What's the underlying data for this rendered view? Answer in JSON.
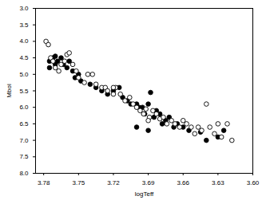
{
  "chart_data": {
    "type": "scatter",
    "x_label": "logTeff",
    "y_label": "Mbol",
    "xlim": [
      3.787,
      3.6
    ],
    "ylim": [
      8,
      3
    ],
    "xticks": [
      3.78,
      3.75,
      3.72,
      3.69,
      3.66,
      3.63,
      {
        "value": 3.6,
        "label": "3.60"
      }
    ],
    "yticks": [
      {
        "value": 3,
        "label": "3.0"
      },
      3.5,
      {
        "value": 4,
        "label": "4.0"
      },
      4.5,
      {
        "value": 5,
        "label": "5.0"
      },
      5.5,
      {
        "value": 6,
        "label": "6.0"
      },
      6.5,
      {
        "value": 7,
        "label": "7.0"
      },
      7.5,
      {
        "value": 8,
        "label": "8.0"
      }
    ],
    "grid": false,
    "series": [
      {
        "color": "#000000",
        "marker": "filled",
        "x": [
          3.775,
          3.772,
          3.77,
          3.768,
          3.765,
          3.763,
          3.76,
          3.758,
          3.755,
          3.753,
          3.75,
          3.748,
          3.775,
          3.77,
          3.74,
          3.735,
          3.73,
          3.725,
          3.72,
          3.715,
          3.712,
          3.708,
          3.705,
          3.7,
          3.698,
          3.695,
          3.693,
          3.69,
          3.688,
          3.685,
          3.683,
          3.68,
          3.678,
          3.675,
          3.672,
          3.668,
          3.665,
          3.66,
          3.655,
          3.645,
          3.64,
          3.63,
          3.625,
          3.69,
          3.7
        ],
        "y": [
          4.6,
          4.5,
          4.7,
          4.6,
          4.5,
          4.7,
          4.8,
          4.6,
          4.9,
          5.1,
          5.0,
          5.2,
          4.8,
          4.45,
          5.3,
          5.4,
          5.5,
          5.6,
          5.5,
          5.4,
          5.7,
          5.8,
          5.9,
          5.9,
          6.0,
          6.0,
          6.2,
          5.9,
          5.55,
          6.3,
          6.1,
          6.2,
          6.5,
          6.4,
          6.3,
          6.6,
          6.5,
          6.6,
          6.7,
          6.75,
          7.0,
          6.9,
          6.7,
          6.7,
          6.6
        ]
      },
      {
        "color": "#000000",
        "marker": "open",
        "x": [
          3.778,
          3.776,
          3.774,
          3.772,
          3.77,
          3.767,
          3.765,
          3.762,
          3.76,
          3.758,
          3.755,
          3.752,
          3.75,
          3.745,
          3.742,
          3.738,
          3.735,
          3.73,
          3.727,
          3.725,
          3.72,
          3.718,
          3.714,
          3.71,
          3.706,
          3.703,
          3.7,
          3.697,
          3.694,
          3.692,
          3.689,
          3.686,
          3.683,
          3.68,
          3.677,
          3.674,
          3.67,
          3.667,
          3.663,
          3.66,
          3.657,
          3.653,
          3.65,
          3.647,
          3.644,
          3.64,
          3.637,
          3.633,
          3.63,
          3.627,
          3.622,
          3.618,
          3.69,
          3.72
        ],
        "y": [
          4.0,
          4.1,
          4.5,
          4.6,
          4.8,
          4.9,
          4.7,
          4.6,
          4.4,
          4.35,
          4.7,
          4.9,
          5.1,
          5.25,
          5.0,
          5.0,
          5.3,
          5.4,
          5.4,
          5.5,
          5.6,
          5.4,
          5.6,
          5.8,
          5.7,
          5.9,
          6.0,
          6.1,
          6.2,
          6.05,
          6.3,
          6.1,
          6.2,
          6.35,
          6.3,
          6.5,
          6.4,
          6.5,
          6.6,
          6.4,
          6.5,
          6.6,
          6.8,
          6.6,
          6.7,
          5.9,
          6.6,
          6.8,
          6.5,
          6.9,
          6.5,
          7.0,
          6.4,
          5.4
        ]
      }
    ]
  }
}
